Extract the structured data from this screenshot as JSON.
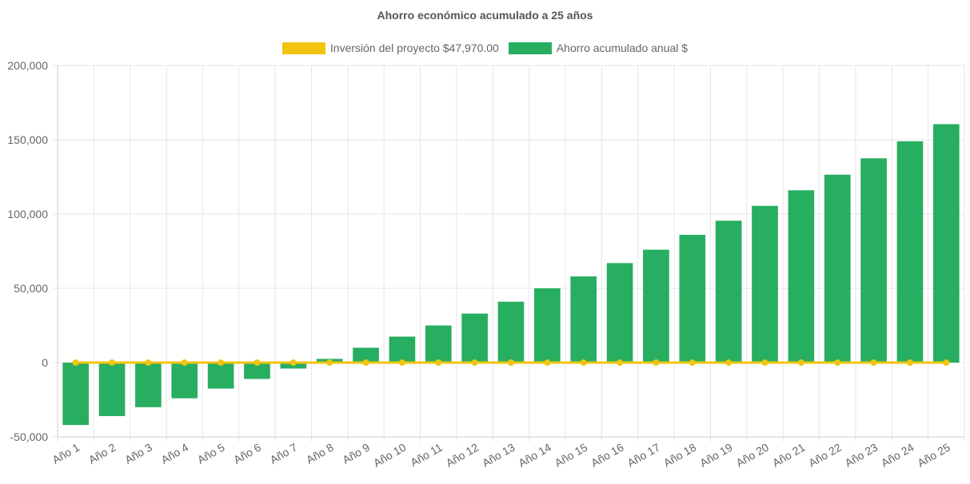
{
  "colors": {
    "savings": "#27ae60",
    "investment": "#f1c40f",
    "grid": "#e6e6e6",
    "axis": "#cccccc"
  },
  "chart_data": {
    "type": "bar",
    "title": "Ahorro económico acumulado a 25 años",
    "legend_position": "top-center",
    "grid": true,
    "ylim": [
      -50000,
      200000
    ],
    "yticks": [
      "-50,000",
      "0",
      "50,000",
      "100,000",
      "150,000",
      "200,000"
    ],
    "ytick_values": [
      -50000,
      0,
      50000,
      100000,
      150000,
      200000
    ],
    "categories": [
      "Año 1",
      "Año 2",
      "Año 3",
      "Año 4",
      "Año 5",
      "Año 6",
      "Año 7",
      "Año 8",
      "Año 9",
      "Año 10",
      "Año 11",
      "Año 12",
      "Año 13",
      "Año 14",
      "Año 15",
      "Año 16",
      "Año 17",
      "Año 18",
      "Año 19",
      "Año 20",
      "Año 21",
      "Año 22",
      "Año 23",
      "Año 24",
      "Año 25"
    ],
    "series": [
      {
        "name": "Inversión del proyecto $47,970.00",
        "type": "line",
        "color": "#f1c40f",
        "values": [
          0,
          0,
          0,
          0,
          0,
          0,
          0,
          0,
          0,
          0,
          0,
          0,
          0,
          0,
          0,
          0,
          0,
          0,
          0,
          0,
          0,
          0,
          0,
          0,
          0
        ]
      },
      {
        "name": "Ahorro acumulado anual $",
        "type": "bar",
        "color": "#27ae60",
        "values": [
          -42000,
          -36000,
          -30000,
          -24000,
          -17500,
          -11000,
          -4000,
          2500,
          10000,
          17500,
          25000,
          33000,
          41000,
          50000,
          58000,
          67000,
          76000,
          86000,
          95500,
          105500,
          116000,
          126500,
          137500,
          149000,
          160500
        ]
      }
    ]
  }
}
